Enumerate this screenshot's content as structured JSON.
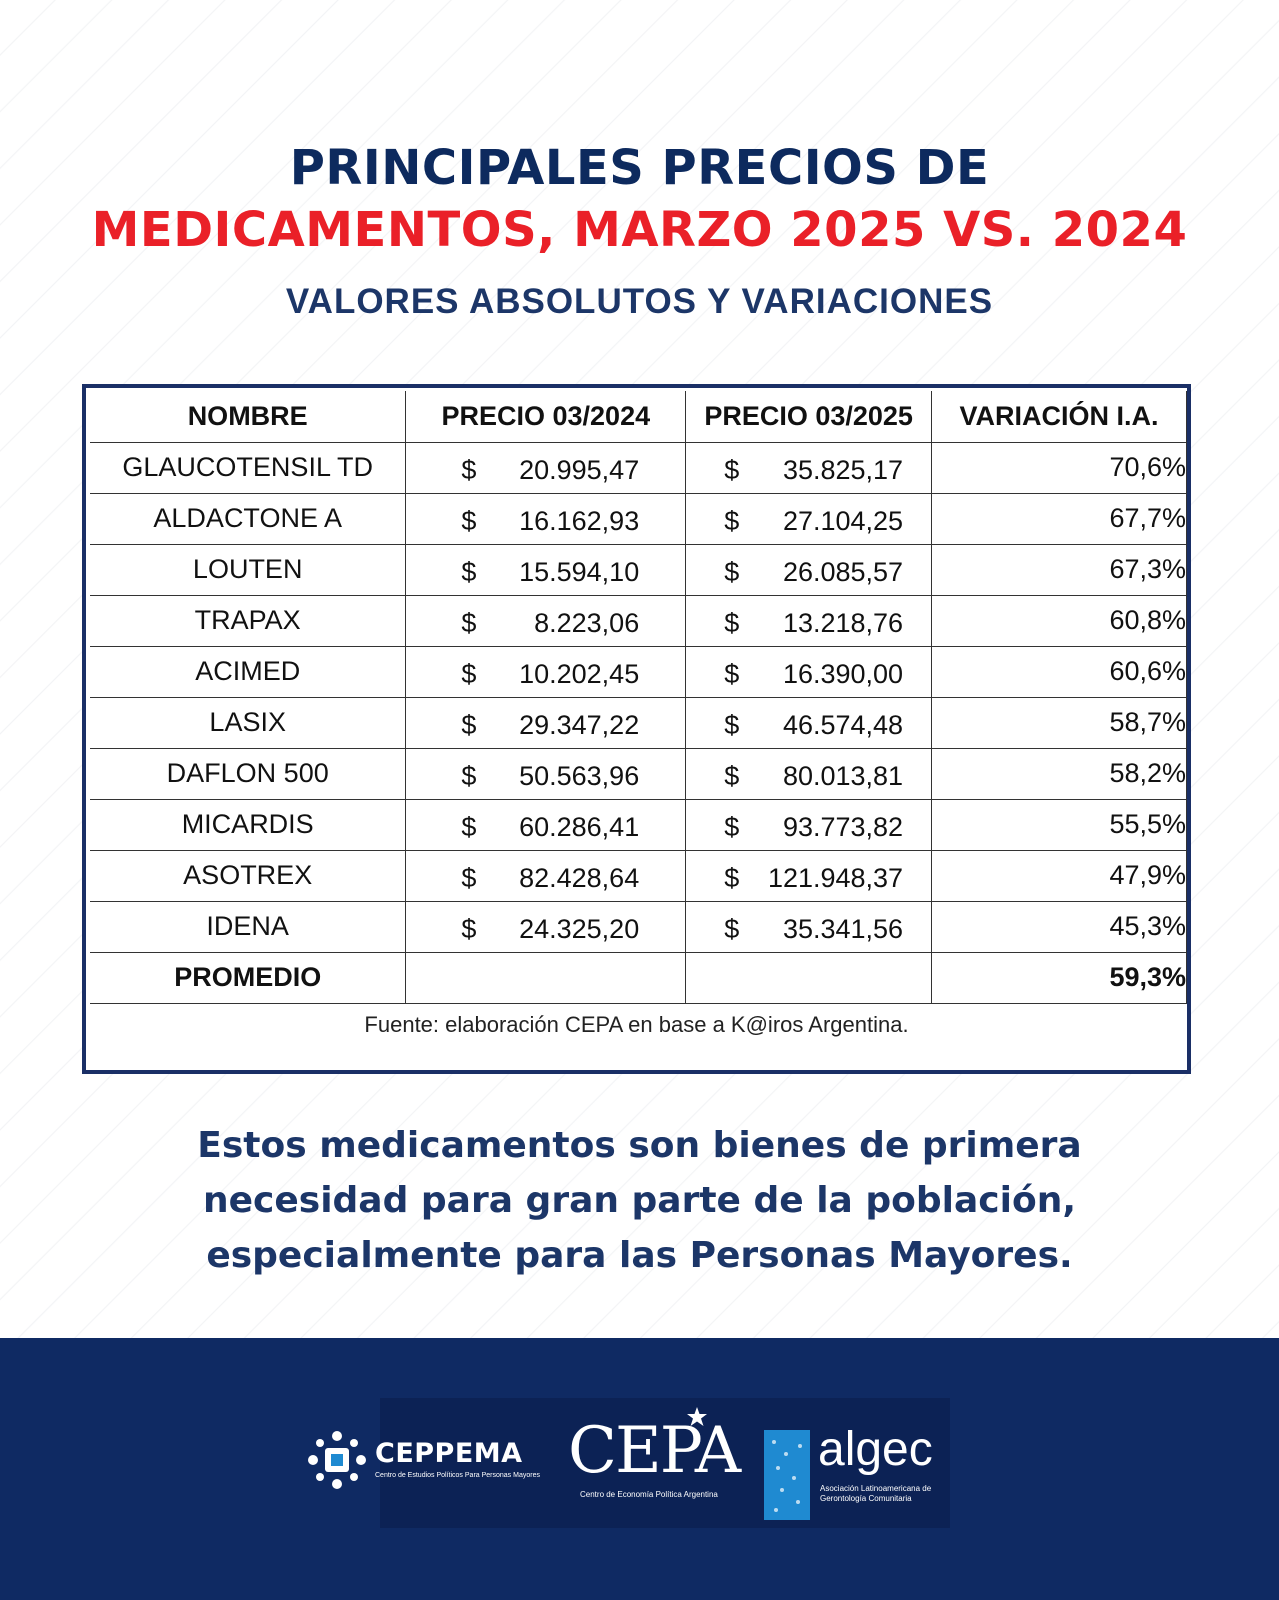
{
  "title_line1": "PRINCIPALES PRECIOS DE",
  "title_line2": "MEDICAMENTOS, MARZO 2025 VS. 2024",
  "subtitle": "VALORES ABSOLUTOS Y VARIACIONES",
  "colors": {
    "navy": "#0d2a5e",
    "red": "#ea2028",
    "footer_bg": "#0f2a63",
    "table_border": "#1a2f66"
  },
  "table": {
    "headers": [
      "NOMBRE",
      "PRECIO 03/2024",
      "PRECIO 03/2025",
      "VARIACIÓN I.A."
    ],
    "currency": "$",
    "rows": [
      {
        "name": "GLAUCOTENSIL TD",
        "price_2024": "20.995,47",
        "price_2025": "35.825,17",
        "variation": "70,6%"
      },
      {
        "name": "ALDACTONE A",
        "price_2024": "16.162,93",
        "price_2025": "27.104,25",
        "variation": "67,7%"
      },
      {
        "name": "LOUTEN",
        "price_2024": "15.594,10",
        "price_2025": "26.085,57",
        "variation": "67,3%"
      },
      {
        "name": "TRAPAX",
        "price_2024": "8.223,06",
        "price_2025": "13.218,76",
        "variation": "60,8%"
      },
      {
        "name": "ACIMED",
        "price_2024": "10.202,45",
        "price_2025": "16.390,00",
        "variation": "60,6%"
      },
      {
        "name": "LASIX",
        "price_2024": "29.347,22",
        "price_2025": "46.574,48",
        "variation": "58,7%"
      },
      {
        "name": "DAFLON 500",
        "price_2024": "50.563,96",
        "price_2025": "80.013,81",
        "variation": "58,2%"
      },
      {
        "name": "MICARDIS",
        "price_2024": "60.286,41",
        "price_2025": "93.773,82",
        "variation": "55,5%"
      },
      {
        "name": "ASOTREX",
        "price_2024": "82.428,64",
        "price_2025": "121.948,37",
        "variation": "47,9%"
      },
      {
        "name": "IDENA",
        "price_2024": "24.325,20",
        "price_2025": "35.341,56",
        "variation": "45,3%"
      }
    ],
    "average": {
      "label": "PROMEDIO",
      "variation": "59,3%"
    },
    "source": "Fuente: elaboración CEPA en base a K@iros Argentina."
  },
  "statement": [
    "Estos medicamentos son bienes de primera",
    "necesidad para gran parte de la población,",
    "especialmente para las Personas Mayores."
  ],
  "footer": {
    "logos": [
      {
        "name": "CEPPEMA",
        "tagline": "Centro de Estudios Políticos Para Personas Mayores",
        "icon": "ceppema-emblem-icon"
      },
      {
        "name": "CEPA",
        "tagline": "Centro de Economía Política Argentina",
        "icon": "star-icon"
      },
      {
        "name": "algec",
        "tagline_line1": "Asociación Latinoamericana de",
        "tagline_line2": "Gerontología Comunitaria",
        "icon": "algec-emblem-icon"
      }
    ]
  }
}
